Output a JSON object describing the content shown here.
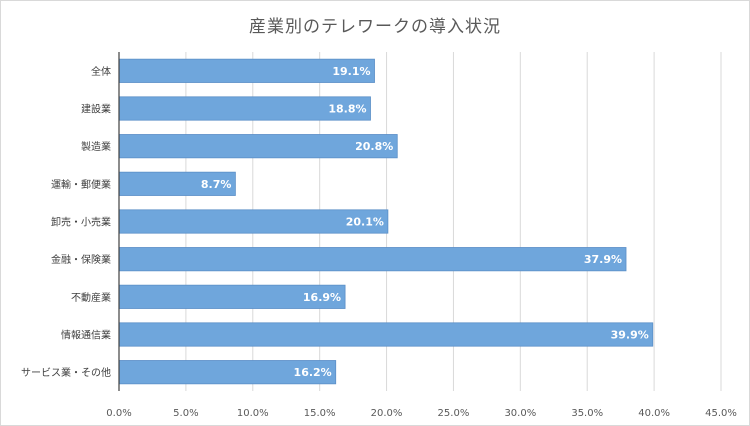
{
  "chart_data": {
    "type": "bar",
    "orientation": "horizontal",
    "title": "産業別のテレワークの導入状況",
    "categories": [
      "全体",
      "建設業",
      "製造業",
      "運輸・郵便業",
      "卸売・小売業",
      "金融・保険業",
      "不動産業",
      "情報通信業",
      "サービス業・その他"
    ],
    "values": [
      19.1,
      18.8,
      20.8,
      8.7,
      20.1,
      37.9,
      16.9,
      39.9,
      16.2
    ],
    "data_labels": [
      "19.1%",
      "18.8%",
      "20.8%",
      "8.7%",
      "20.1%",
      "37.9%",
      "16.9%",
      "39.9%",
      "16.2%"
    ],
    "xticks": [
      "0.0%",
      "5.0%",
      "10.0%",
      "15.0%",
      "20.0%",
      "25.0%",
      "30.0%",
      "35.0%",
      "40.0%",
      "45.0%"
    ],
    "xlim": [
      0,
      45
    ],
    "grid": true,
    "bar_color": "#6fa6dc",
    "bar_border_color": "#5b8fc7"
  }
}
